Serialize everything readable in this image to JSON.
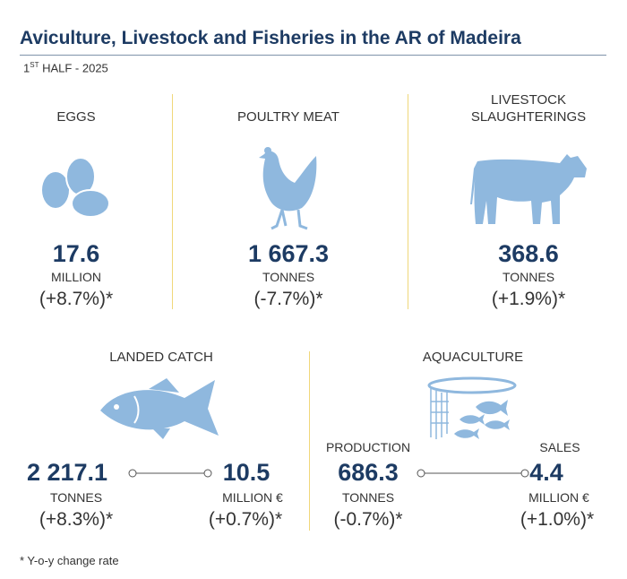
{
  "header": {
    "title": "Aviculture, Livestock and Fisheries in the AR of Madeira",
    "subtitle_number": "1",
    "subtitle_suffix": "ST",
    "subtitle_rest": " HALF - 2025"
  },
  "panels": {
    "eggs": {
      "label": "EGGS",
      "value": "17.6",
      "unit": "MILLION",
      "change": "(+8.7%)*"
    },
    "poultry": {
      "label": "POULTRY MEAT",
      "value": "1 667.3",
      "unit": "TONNES",
      "change": "(-7.7%)*"
    },
    "livestock": {
      "label_lines": [
        "LIVESTOCK",
        "SLAUGHTERINGS"
      ],
      "value": "368.6",
      "unit": "TONNES",
      "change": "(+1.9%)*"
    },
    "landed_catch": {
      "label": "LANDED CATCH",
      "measures": [
        {
          "value": "2 217.1",
          "unit": "TONNES",
          "change": "(+8.3%)*"
        },
        {
          "value": "10.5",
          "unit": "MILLION €",
          "change": "(+0.7%)*"
        }
      ]
    },
    "aquaculture": {
      "label": "AQUACULTURE",
      "measures": [
        {
          "label": "PRODUCTION",
          "value": "686.3",
          "unit": "TONNES",
          "change": "(-0.7%)*"
        },
        {
          "label": "SALES",
          "value": "4.4",
          "unit": "MILLION €",
          "change": "(+1.0%)*"
        }
      ]
    }
  },
  "footnote": "* Y-o-y change rate"
}
